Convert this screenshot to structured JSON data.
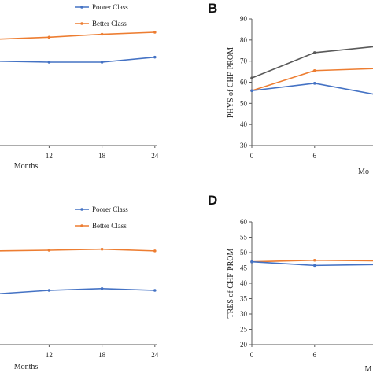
{
  "colors": {
    "poorer": "#4472C4",
    "better": "#ED7D31",
    "third": "#595959",
    "axis": "#595959"
  },
  "chart_data": [
    {
      "panel": "",
      "type": "line",
      "x": [
        0,
        6,
        12,
        18,
        24
      ],
      "xticks": [
        "12",
        "18",
        "24"
      ],
      "xlabel": "Months",
      "ylabel": "",
      "legend": [
        "Poorer Class",
        "Better Class"
      ],
      "series": [
        {
          "name": "Poorer Class",
          "values": [
            60,
            59.5,
            59,
            59,
            61.5
          ]
        },
        {
          "name": "Better Class",
          "values": [
            70,
            70.5,
            71.5,
            73,
            74
          ]
        }
      ]
    },
    {
      "panel": "B",
      "type": "line",
      "x": [
        0,
        6,
        12,
        18,
        24
      ],
      "xticks": [
        "0",
        "6"
      ],
      "xlabel": "Mo",
      "ylabel": "PHYS of CHF-PROM",
      "ylim": [
        30,
        90
      ],
      "yticks": [
        "30",
        "40",
        "50",
        "60",
        "70",
        "80",
        "90"
      ],
      "series": [
        {
          "name": "",
          "values": [
            62,
            74,
            77,
            78,
            79
          ]
        },
        {
          "name": "Better Class",
          "values": [
            56,
            65.5,
            66.5,
            67,
            67.5
          ]
        },
        {
          "name": "Poorer Class",
          "values": [
            56,
            59.5,
            54,
            52,
            51
          ]
        }
      ]
    },
    {
      "panel": "",
      "type": "line",
      "x": [
        0,
        6,
        12,
        18,
        24
      ],
      "xticks": [
        "12",
        "18",
        "24"
      ],
      "xlabel": "Months",
      "ylabel": "",
      "legend": [
        "Poorer Class",
        "Better Class"
      ],
      "series": [
        {
          "name": "Poorer Class",
          "values": [
            45,
            46,
            47,
            47.5,
            47
          ]
        },
        {
          "name": "Better Class",
          "values": [
            58,
            58.3,
            58.5,
            58.8,
            58.3
          ]
        }
      ]
    },
    {
      "panel": "D",
      "type": "line",
      "x": [
        0,
        6,
        12,
        18,
        24
      ],
      "xticks": [
        "0",
        "6"
      ],
      "xlabel": "M",
      "ylabel": "TRES of CHF-PROM",
      "ylim": [
        20,
        60
      ],
      "yticks": [
        "20",
        "25",
        "30",
        "35",
        "40",
        "45",
        "50",
        "55",
        "60"
      ],
      "series": [
        {
          "name": "Better Class",
          "values": [
            47,
            47.5,
            47.3,
            47.2,
            47.1
          ]
        },
        {
          "name": "Poorer Class",
          "values": [
            47,
            45.8,
            46.1,
            46.3,
            46.4
          ]
        }
      ]
    }
  ]
}
